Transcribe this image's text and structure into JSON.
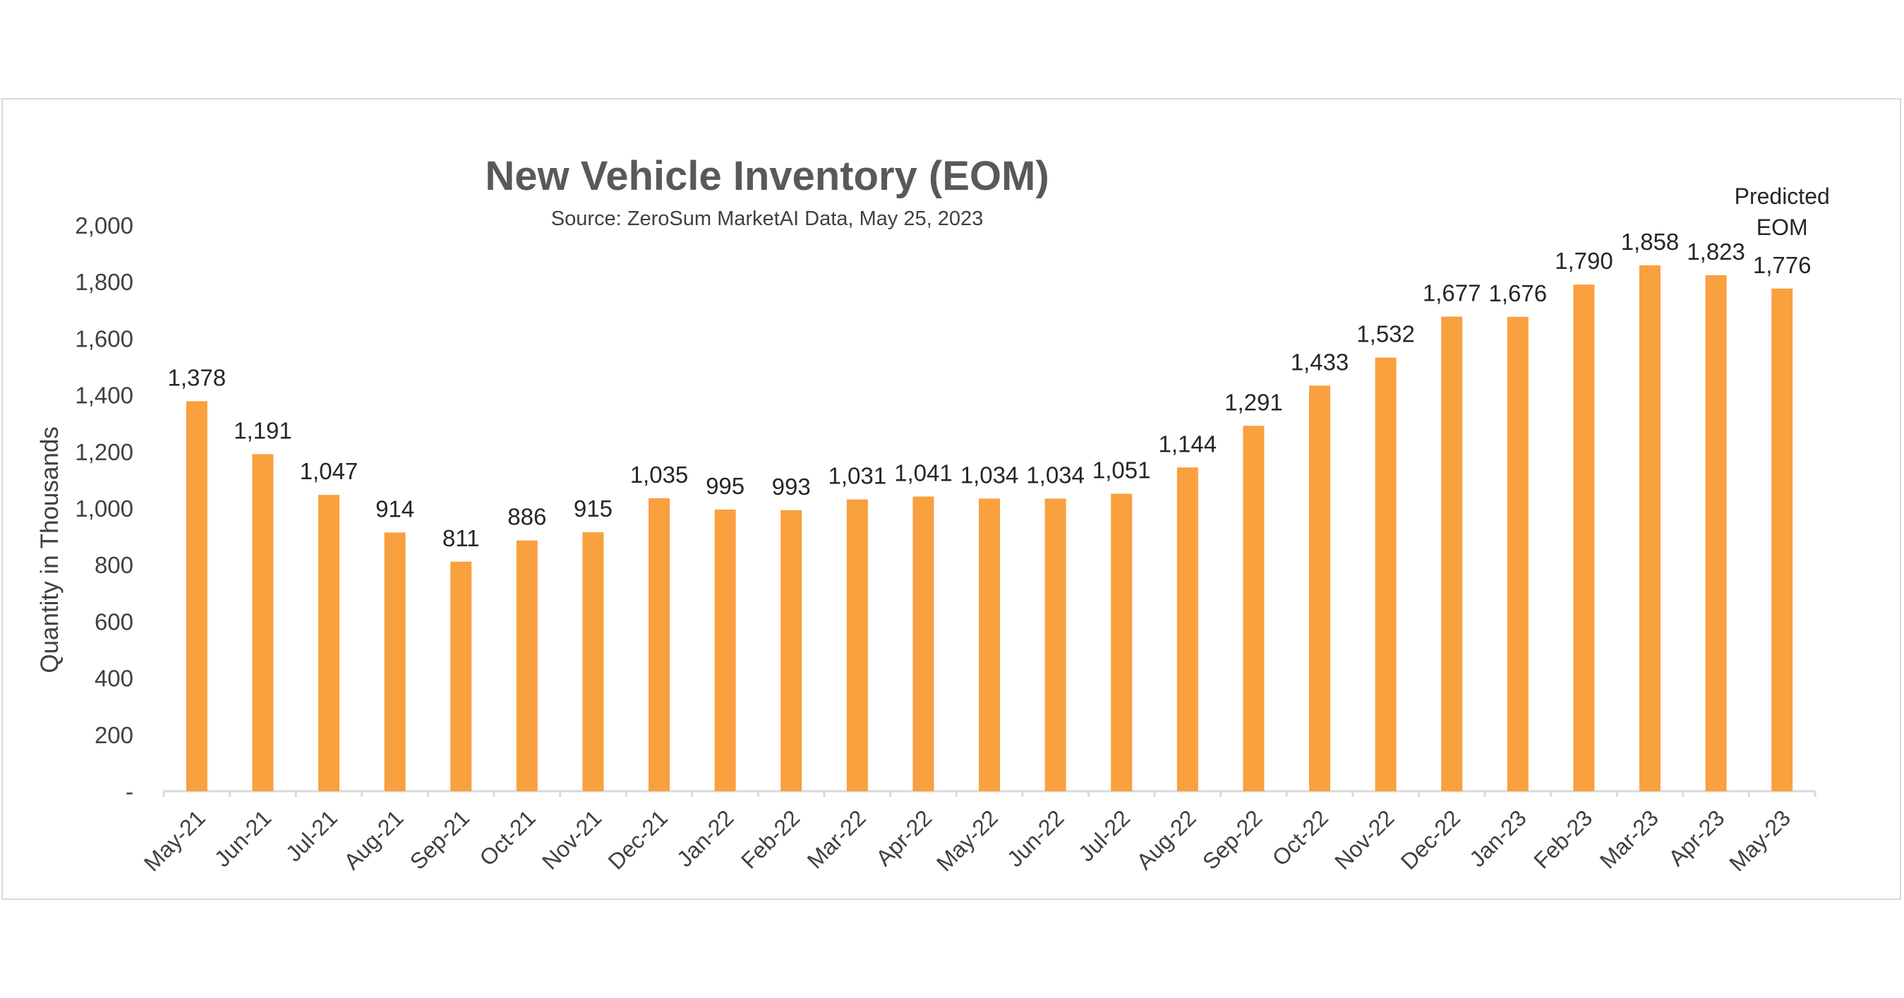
{
  "chart_data": {
    "type": "bar",
    "title": "New Vehicle Inventory (EOM)",
    "subtitle": "Source: ZeroSum MarketAI Data, May 25, 2023",
    "ylabel": "Quantity in Thousands",
    "xlabel": "",
    "ylim": [
      0,
      2000
    ],
    "yticks": [
      0,
      200,
      400,
      600,
      800,
      1000,
      1200,
      1400,
      1600,
      1800,
      2000
    ],
    "ytick_labels": [
      "-",
      "200",
      "400",
      "600",
      "800",
      "1,000",
      "1,200",
      "1,400",
      "1,600",
      "1,800",
      "2,000"
    ],
    "categories": [
      "May-21",
      "Jun-21",
      "Jul-21",
      "Aug-21",
      "Sep-21",
      "Oct-21",
      "Nov-21",
      "Dec-21",
      "Jan-22",
      "Feb-22",
      "Mar-22",
      "Apr-22",
      "May-22",
      "Jun-22",
      "Jul-22",
      "Aug-22",
      "Sep-22",
      "Oct-22",
      "Nov-22",
      "Dec-22",
      "Jan-23",
      "Feb-23",
      "Mar-23",
      "Apr-23",
      "May-23"
    ],
    "values": [
      1378,
      1191,
      1047,
      914,
      811,
      886,
      915,
      1035,
      995,
      993,
      1031,
      1041,
      1034,
      1034,
      1051,
      1144,
      1291,
      1433,
      1532,
      1677,
      1676,
      1790,
      1858,
      1823,
      1776
    ],
    "value_labels": [
      "1,378",
      "1,191",
      "1,047",
      "914",
      "811",
      "886",
      "915",
      "1,035",
      "995",
      "993",
      "1,031",
      "1,041",
      "1,034",
      "1,034",
      "1,051",
      "1,144",
      "1,291",
      "1,433",
      "1,532",
      "1,677",
      "1,676",
      "1,790",
      "1,858",
      "1,823",
      "1,776"
    ],
    "annotation": [
      "Predicted",
      "EOM"
    ],
    "grid": false,
    "legend": "none",
    "bar_color": "#F9A03F",
    "axis_color": "#d9d9d9"
  }
}
